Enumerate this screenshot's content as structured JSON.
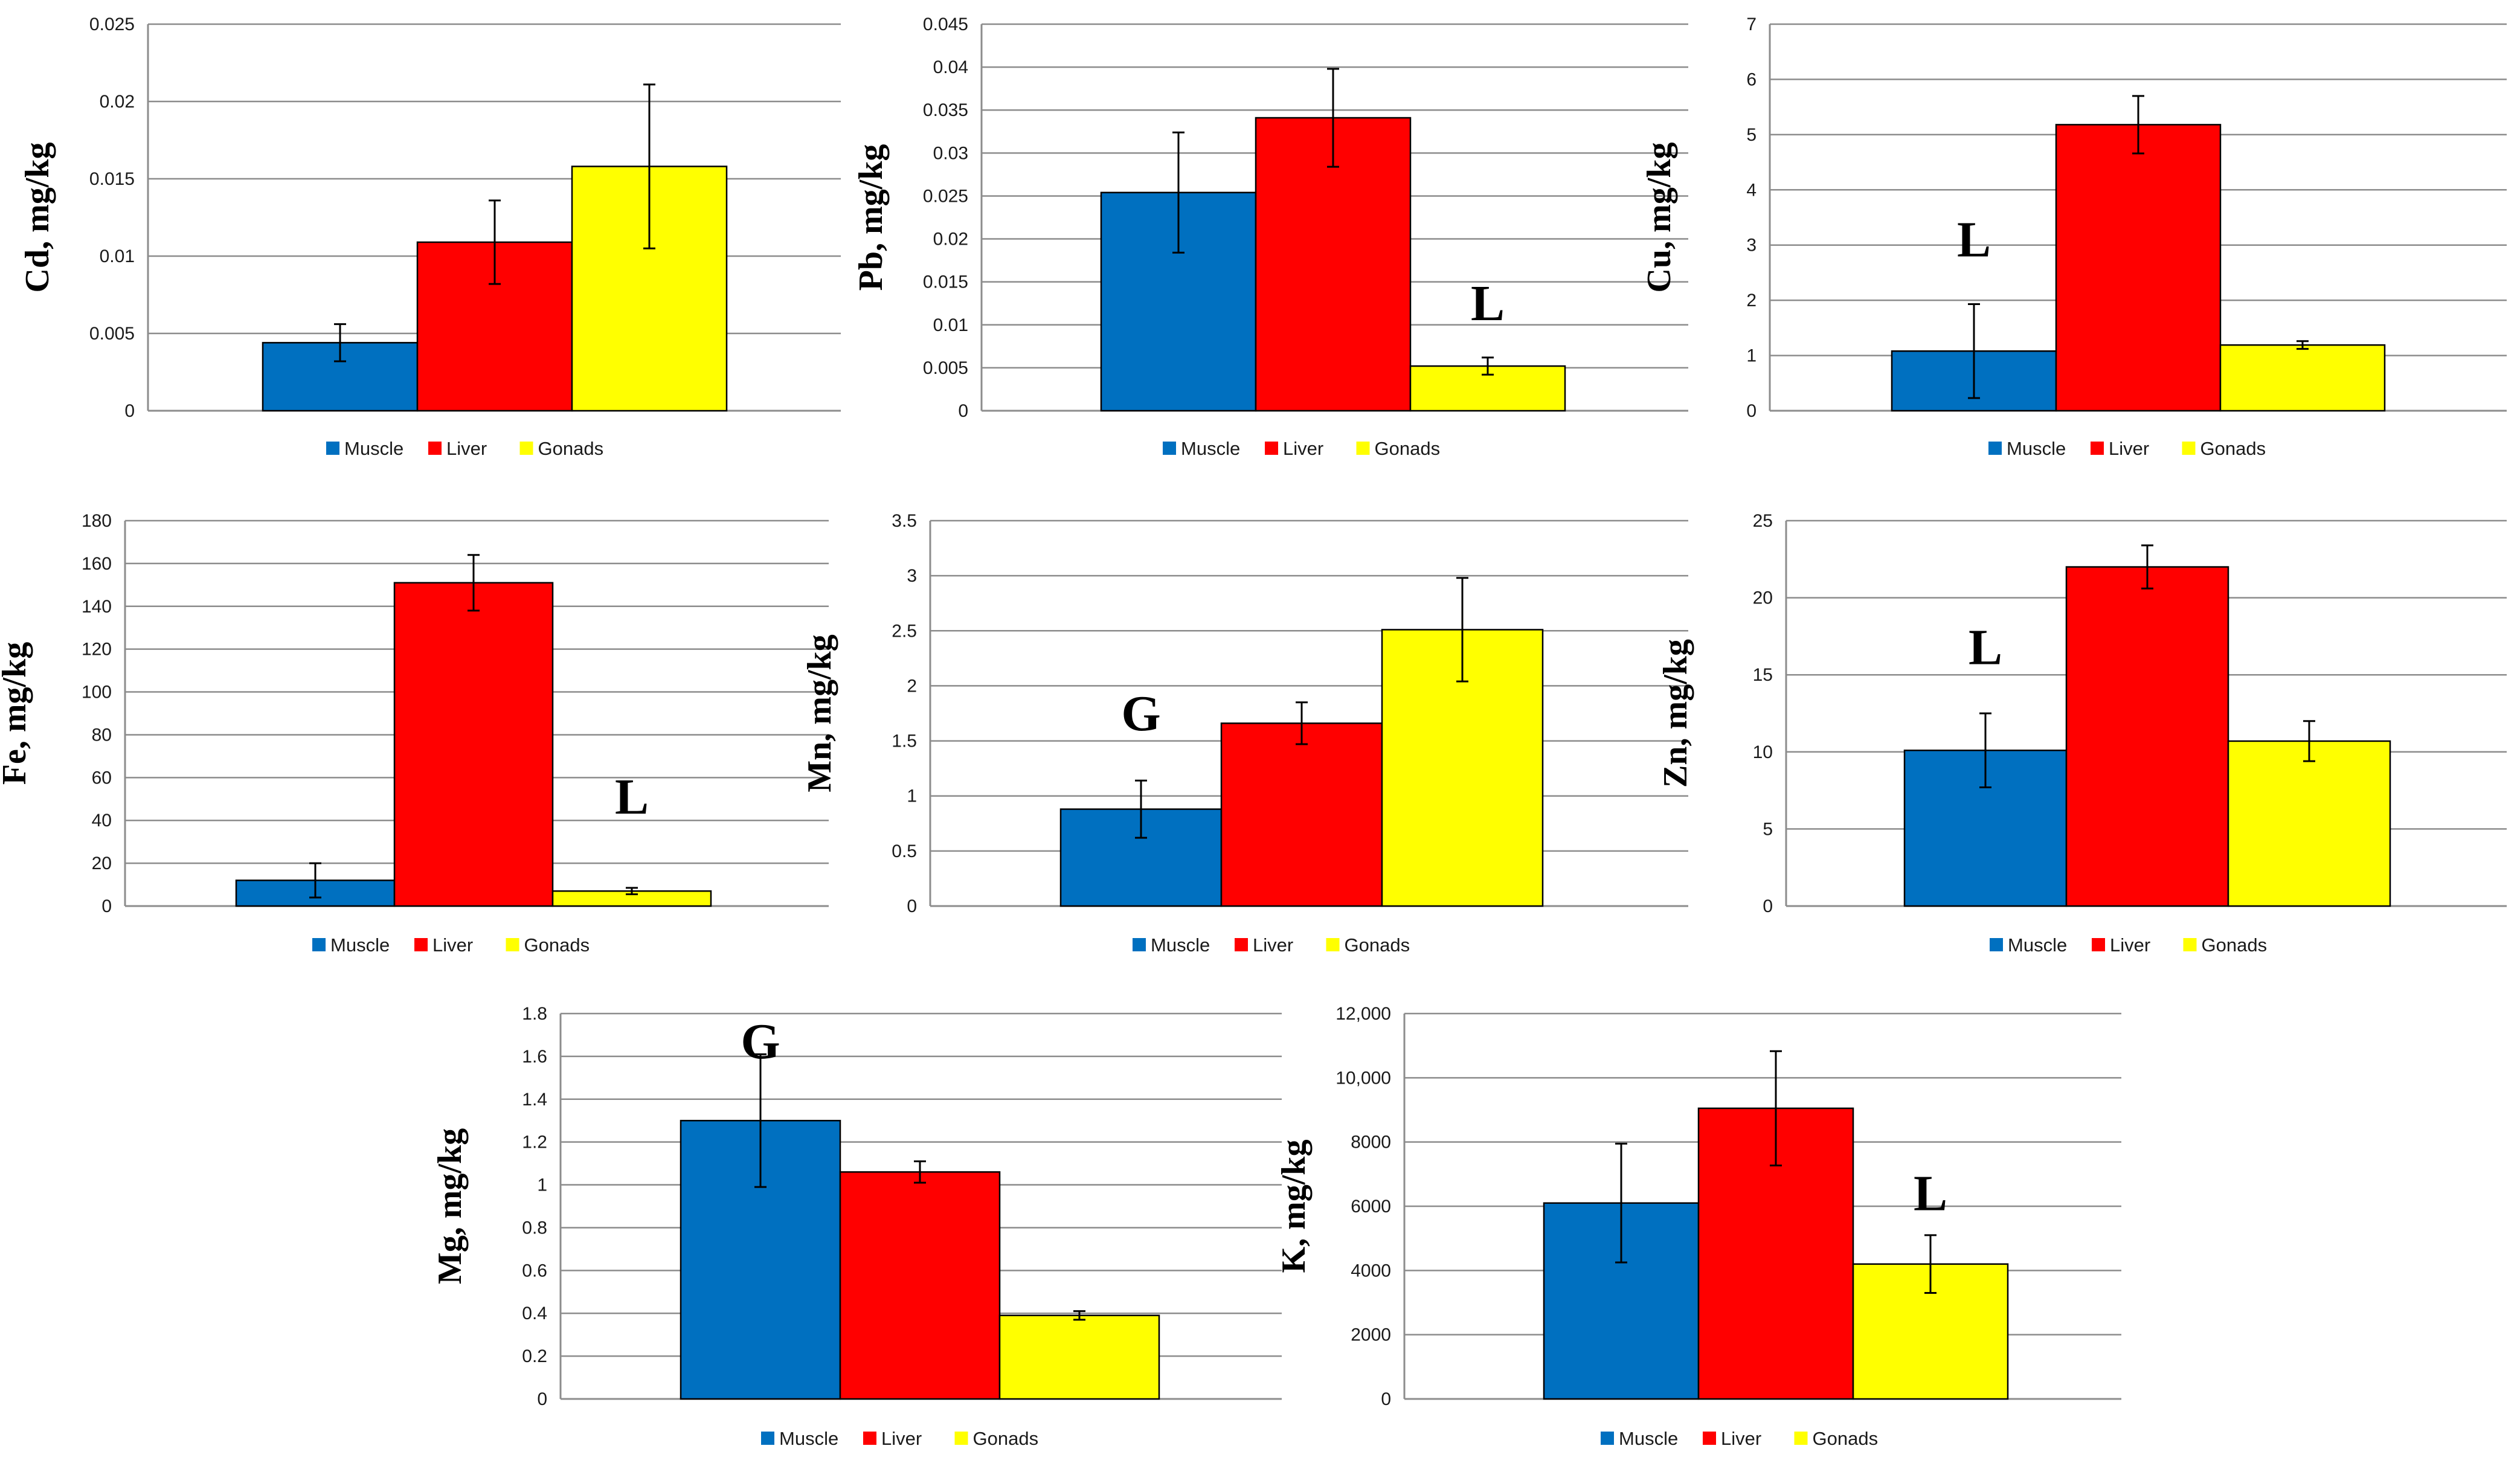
{
  "colors": {
    "Muscle": "#0070c0",
    "Liberation Muscle alt": "#0070c0",
    "Liver": "#ff0000",
    "Gonads": "#ffff00"
  },
  "chart_data": [
    {
      "type": "bar",
      "categories": [
        "Muscle",
        "Liver",
        "Gonads"
      ],
      "values": [
        0.0044,
        0.0109,
        0.0158
      ],
      "errors": [
        0.0012,
        0.0027,
        0.0053
      ],
      "ylabel": "Cd, mg/kg",
      "ylim": [
        0,
        0.025
      ],
      "yticks": [
        "0",
        "0.005",
        "0.01",
        "0.015",
        "0.02",
        "0.025"
      ],
      "annotations": [],
      "legend": [
        "Muscle",
        "Liver",
        "Gonads"
      ]
    },
    {
      "type": "bar",
      "categories": [
        "Muscle",
        "Liver",
        "Gonads"
      ],
      "values": [
        0.0254,
        0.0341,
        0.0052
      ],
      "errors": [
        0.007,
        0.0057,
        0.001
      ],
      "ylabel": "Pb, mg/kg",
      "ylim": [
        0,
        0.045
      ],
      "yticks": [
        "0",
        "0.005",
        "0.01",
        "0.015",
        "0.02",
        "0.025",
        "0.03",
        "0.035",
        "0.04",
        "0.045"
      ],
      "annotations": [
        {
          "text": "L",
          "bar": 2,
          "y": 0.0125
        }
      ],
      "legend": [
        "Muscle",
        "Liver",
        "Gonads"
      ]
    },
    {
      "type": "bar",
      "categories": [
        "Muscle",
        "Liver",
        "Gonads"
      ],
      "values": [
        1.08,
        5.18,
        1.19
      ],
      "errors": [
        0.85,
        0.52,
        0.07
      ],
      "ylabel": "Cu, mg/kg",
      "ylim": [
        0,
        7
      ],
      "yticks": [
        "0",
        "1",
        "2",
        "3",
        "4",
        "5",
        "6",
        "7"
      ],
      "annotations": [
        {
          "text": "L",
          "bar": 0,
          "y": 3.1
        }
      ],
      "legend": [
        "Muscle",
        "Liver",
        "Gonads"
      ]
    },
    {
      "type": "bar",
      "categories": [
        "Muscle",
        "Liver",
        "Gonads"
      ],
      "values": [
        12,
        151,
        7
      ],
      "errors": [
        8,
        13,
        1.5
      ],
      "ylabel": "Fe, mg/kg",
      "ylim": [
        0,
        180
      ],
      "yticks": [
        "0",
        "20",
        "40",
        "60",
        "80",
        "100",
        "120",
        "140",
        "160",
        "180"
      ],
      "annotations": [
        {
          "text": "L",
          "bar": 2,
          "y": 51
        }
      ],
      "legend": [
        "Muscle",
        "Liver",
        "Gonads"
      ]
    },
    {
      "type": "bar",
      "categories": [
        "Muscle",
        "Liver",
        "Gonads"
      ],
      "values": [
        0.88,
        1.66,
        2.51
      ],
      "errors": [
        0.26,
        0.19,
        0.47
      ],
      "ylabel": "Mn, mg/kg",
      "ylim": [
        0,
        3.5
      ],
      "yticks": [
        "0",
        "0.5",
        "1",
        "1.5",
        "2",
        "2.5",
        "3",
        "3.5"
      ],
      "annotations": [
        {
          "text": "G",
          "bar": 0,
          "y": 1.75
        }
      ],
      "legend": [
        "Muscle",
        "Liver",
        "Gonads"
      ]
    },
    {
      "type": "bar",
      "categories": [
        "Muscle",
        "Liver",
        "Gonads"
      ],
      "values": [
        10.1,
        22,
        10.7
      ],
      "errors": [
        2.4,
        1.4,
        1.3
      ],
      "ylabel": "Zn, mg/kg",
      "ylim": [
        0,
        25
      ],
      "yticks": [
        "0",
        "5",
        "10",
        "15",
        "20",
        "25"
      ],
      "annotations": [
        {
          "text": "L",
          "bar": 0,
          "y": 16.8
        }
      ],
      "legend": [
        "Muscle",
        "Liver",
        "Gonads"
      ]
    },
    {
      "type": "bar",
      "categories": [
        "Muscle",
        "Liver",
        "Gonads"
      ],
      "values": [
        1.3,
        1.06,
        0.39
      ],
      "errors": [
        0.31,
        0.05,
        0.02
      ],
      "ylabel": "Mg, mg/kg",
      "ylim": [
        0,
        1.8
      ],
      "yticks": [
        "0",
        "0.2",
        "0.4",
        "0.6",
        "0.8",
        "1",
        "1.2",
        "1.4",
        "1.6",
        "1.8"
      ],
      "annotations": [
        {
          "text": "G",
          "bar": 0,
          "y": 1.67
        }
      ],
      "legend": [
        "Muscle",
        "Liver",
        "Gonads"
      ]
    },
    {
      "type": "bar",
      "categories": [
        "Muscle",
        "Liver",
        "Gonads"
      ],
      "values": [
        6100,
        9050,
        4200
      ],
      "errors": [
        1850,
        1780,
        900
      ],
      "ylabel": "K, mg/kg",
      "ylim": [
        0,
        12000
      ],
      "yticks": [
        "0",
        "2000",
        "4000",
        "6000",
        "8000",
        "10,000",
        "12,000"
      ],
      "annotations": [
        {
          "text": "L",
          "bar": 2,
          "y": 6400
        }
      ],
      "legend": [
        "Muscle",
        "Liver",
        "Gonads"
      ]
    }
  ]
}
